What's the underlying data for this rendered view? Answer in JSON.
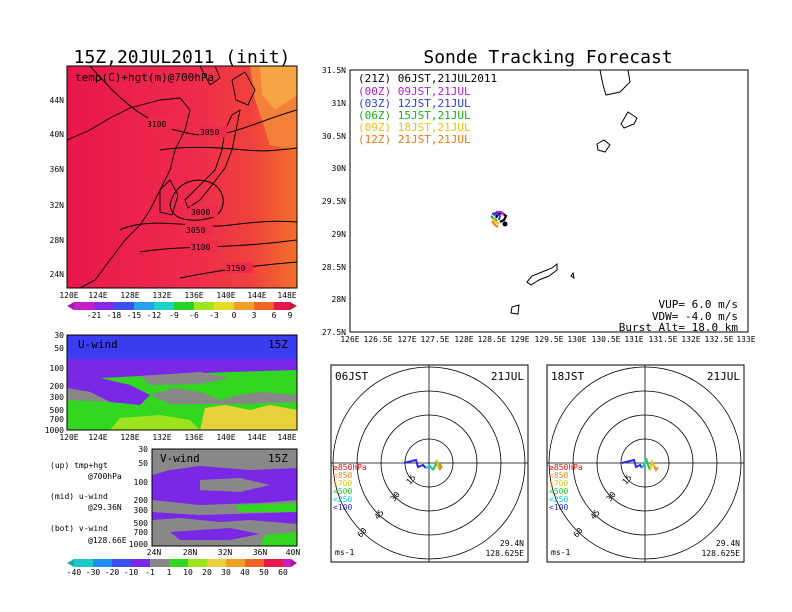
{
  "colors": {
    "red": "#e8174a",
    "pink": "#ef3f6e",
    "orange": "#f28030",
    "yellow": "#e8d23c",
    "green": "#33d621",
    "lightgreen": "#9be41e",
    "cyan": "#1fd1c4",
    "blue": "#3c3cf0",
    "violet": "#7a28e6",
    "grey": "#888888"
  },
  "main_panel": {
    "title": "Sonde Tracking Forecast",
    "legend": [
      {
        "label": "(21Z) 06JST,21JUL2011",
        "color": "#000000"
      },
      {
        "label": "(00Z) 09JST,21JUL",
        "color": "#b51fd8"
      },
      {
        "label": "(03Z) 12JST,21JUL",
        "color": "#2a3ee0"
      },
      {
        "label": "(06Z) 15JST,21JUL",
        "color": "#18b418"
      },
      {
        "label": "(09Z) 18JST,21JUL",
        "color": "#e8c414"
      },
      {
        "label": "(12Z) 21JST,21JUL",
        "color": "#e87a14"
      }
    ],
    "info": [
      "VUP= 6.0 m/s",
      "VDW= -4.0 m/s",
      "Burst Alt= 18.0 km"
    ],
    "xticks": [
      "126E",
      "126.5E",
      "127E",
      "127.5E",
      "128E",
      "128.5E",
      "129E",
      "129.5E",
      "130E",
      "130.5E",
      "131E",
      "131.5E",
      "132E",
      "132.5E",
      "133E"
    ],
    "yticks": [
      "27.5N",
      "28N",
      "28.5N",
      "29N",
      "29.5N",
      "30N",
      "30.5N",
      "31N",
      "31.5N"
    ]
  },
  "top_map": {
    "title": "15Z,20JUL2011 (init)",
    "label": "temp(C)+hgt(m)@700hPa",
    "contours": [
      "3100",
      "3050",
      "3000",
      "3050",
      "3100",
      "3150"
    ],
    "xticks": [
      "120E",
      "124E",
      "128E",
      "132E",
      "136E",
      "140E",
      "144E",
      "148E"
    ],
    "yticks": [
      "44N",
      "40N",
      "36N",
      "32N",
      "28N",
      "24N"
    ],
    "colorbar": [
      "-21",
      "-18",
      "-15",
      "-12",
      "-9",
      "-6",
      "-3",
      "0",
      "3",
      "6",
      "9"
    ]
  },
  "u_panel": {
    "label": "U-wind",
    "time": "15Z",
    "yticks": [
      "30",
      "50",
      "100",
      "200",
      "300",
      "500",
      "700",
      "1000"
    ],
    "xticks": [
      "120E",
      "124E",
      "128E",
      "132E",
      "136E",
      "140E",
      "144E",
      "148E"
    ]
  },
  "v_panel": {
    "label": "V-wind",
    "time": "15Z",
    "yticks": [
      "30",
      "50",
      "100",
      "200",
      "300",
      "500",
      "700",
      "1000"
    ],
    "xticks": [
      "24N",
      "28N",
      "32N",
      "36N",
      "40N"
    ],
    "colorbar": [
      "-40",
      "-30",
      "-20",
      "-10",
      "-1",
      "1",
      "10",
      "20",
      "30",
      "40",
      "50",
      "60"
    ]
  },
  "notes": [
    "(up) tmp+hgt",
    "@700hPa",
    "(mid) u-wind",
    "@29.36N",
    "(bot) v-wind",
    "@128.66E"
  ],
  "hodographs": [
    {
      "time": "06JST",
      "date": "21JUL",
      "lat": "29.4N",
      "lon": "128.625E",
      "unit": "ms-1",
      "rings": [
        "15",
        "30",
        "45",
        "60"
      ],
      "levels": [
        {
          "label": "≥850hPa",
          "color": "#e01414"
        },
        {
          "label": "<850",
          "color": "#f08a14"
        },
        {
          "label": "<700",
          "color": "#dcc814"
        },
        {
          "label": "<500",
          "color": "#28c828"
        },
        {
          "label": "<250",
          "color": "#14c8dc"
        },
        {
          "label": "<100",
          "color": "#2828e6"
        }
      ]
    },
    {
      "time": "18JST",
      "date": "21JUL",
      "lat": "29.4N",
      "lon": "128.625E",
      "unit": "ms-1",
      "rings": [
        "15",
        "30",
        "45",
        "60"
      ],
      "levels": [
        {
          "label": "≥850hPa",
          "color": "#e01414"
        },
        {
          "label": "<850",
          "color": "#f08a14"
        },
        {
          "label": "<700",
          "color": "#dcc814"
        },
        {
          "label": "<500",
          "color": "#28c828"
        },
        {
          "label": "<250",
          "color": "#14c8dc"
        },
        {
          "label": "<100",
          "color": "#2828e6"
        }
      ]
    }
  ]
}
